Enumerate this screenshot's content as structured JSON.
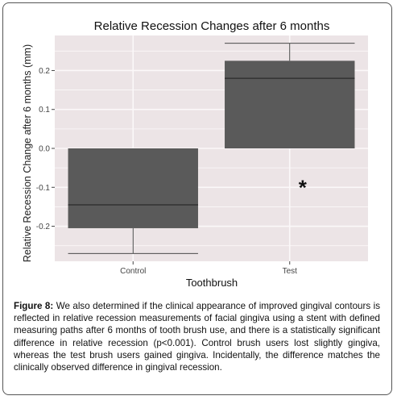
{
  "chart_data": {
    "type": "boxplot",
    "title": "Relative Recession Changes after 6 months",
    "xlabel": "Toothbrush",
    "ylabel": "Relative Recession Change after 6 months (mm)",
    "ylim": [
      -0.29,
      0.29
    ],
    "yticks": [
      -0.2,
      -0.1,
      0.0,
      0.1,
      0.2
    ],
    "ytick_labels": [
      "-0.2",
      "-0.1",
      "0.0",
      "0.1",
      "0.2"
    ],
    "categories": [
      "Control",
      "Test"
    ],
    "boxes": [
      {
        "category": "Control",
        "whisker_low": -0.27,
        "q1": -0.205,
        "median": -0.145,
        "q3": 0.0,
        "whisker_high": 0.0
      },
      {
        "category": "Test",
        "whisker_low": 0.0,
        "q1": 0.0,
        "median": 0.18,
        "q3": 0.225,
        "whisker_high": 0.27
      }
    ],
    "annotation": {
      "text": "*",
      "category": "Test",
      "y": -0.09
    },
    "grid": true,
    "colors": {
      "panel": "#ece4e6",
      "grid": "#fbf8f9",
      "box": "#5a5a5a",
      "line": "#2a2a2a"
    }
  },
  "caption": {
    "label": "Figure 8:",
    "text": " We also determined if the clinical appearance of improved gingival contours is reflected in relative recession measurements of facial gingiva using a stent with defined measuring paths after 6 months of tooth brush use, and there is a statistically significant difference in relative recession (p<0.001). Control brush users lost slightly gingiva, whereas the test brush users gained gingiva. Incidentally, the difference matches the clinically observed difference in gingival recession."
  }
}
